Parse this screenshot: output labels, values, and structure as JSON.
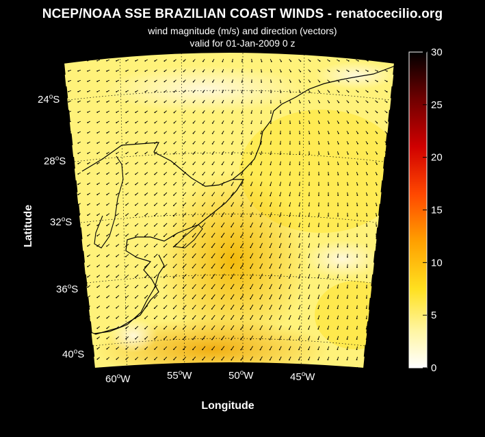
{
  "figure": {
    "title": "NCEP/NOAA SSE BRAZILIAN COAST WINDS - renatocecilio.org",
    "subtitle1": "wind magnitude (m/s) and direction (vectors)",
    "subtitle2": "valid for 01-Jan-2009  0 z",
    "xlabel": "Longitude",
    "ylabel": "Latitude"
  },
  "map": {
    "lat_ticks": [
      {
        "value": "24",
        "hemi": "S"
      },
      {
        "value": "28",
        "hemi": "S"
      },
      {
        "value": "32",
        "hemi": "S"
      },
      {
        "value": "36",
        "hemi": "S"
      },
      {
        "value": "40",
        "hemi": "S"
      }
    ],
    "lon_ticks": [
      {
        "value": "60",
        "hemi": "W"
      },
      {
        "value": "55",
        "hemi": "W"
      },
      {
        "value": "50",
        "hemi": "W"
      },
      {
        "value": "45",
        "hemi": "W"
      }
    ],
    "land_color": "#000000",
    "coast_color": "#000000",
    "vector_color": "#000000"
  },
  "colorbar": {
    "ticks": [
      "30",
      "25",
      "20",
      "15",
      "10",
      "5",
      "0"
    ],
    "range": [
      0,
      30
    ],
    "colormap": [
      "#ffffff",
      "#fff08a",
      "#ffd21e",
      "#ffa500",
      "#ff5000",
      "#e00000",
      "#9a0000",
      "#3a0000",
      "#000000"
    ]
  }
}
